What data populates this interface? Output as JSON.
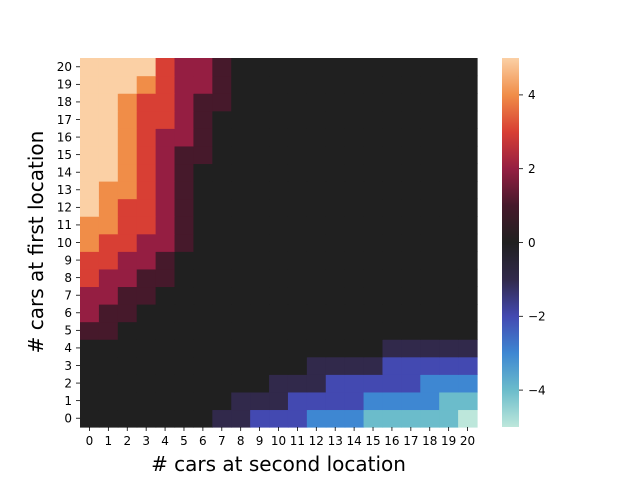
{
  "chart_data": {
    "type": "heatmap",
    "title": "",
    "xlabel": "# cars at second location",
    "ylabel": "# cars at first location",
    "x_categories": [
      "0",
      "1",
      "2",
      "3",
      "4",
      "5",
      "6",
      "7",
      "8",
      "9",
      "10",
      "11",
      "12",
      "13",
      "14",
      "15",
      "16",
      "17",
      "18",
      "19",
      "20"
    ],
    "y_categories": [
      "0",
      "1",
      "2",
      "3",
      "4",
      "5",
      "6",
      "7",
      "8",
      "9",
      "10",
      "11",
      "12",
      "13",
      "14",
      "15",
      "16",
      "17",
      "18",
      "19",
      "20"
    ],
    "y_order": "bottom-to-top",
    "value_range": [
      -5,
      5
    ],
    "colormap": "icefire",
    "colormap_stops": [
      "#bde7db",
      "#6bbccb",
      "#3e87d2",
      "#4349b1",
      "#31294b",
      "#202020",
      "#46192b",
      "#951e42",
      "#d83f34",
      "#f08d48",
      "#fbd0a5"
    ],
    "colorbar": {
      "ticks": [
        4,
        2,
        0,
        -2,
        -4
      ],
      "tick_labels": [
        "4",
        "2",
        "0",
        "−2",
        "−4"
      ],
      "position": "right"
    },
    "grid": false,
    "rows": [
      [
        0,
        0,
        0,
        0,
        0,
        0,
        0,
        -1,
        -1,
        -2,
        -2,
        -2,
        -3,
        -3,
        -3,
        -4,
        -4,
        -4,
        -4,
        -4,
        -5
      ],
      [
        0,
        0,
        0,
        0,
        0,
        0,
        0,
        0,
        -1,
        -1,
        -1,
        -2,
        -2,
        -2,
        -2,
        -3,
        -3,
        -3,
        -3,
        -4,
        -4
      ],
      [
        0,
        0,
        0,
        0,
        0,
        0,
        0,
        0,
        0,
        0,
        -1,
        -1,
        -1,
        -2,
        -2,
        -2,
        -2,
        -2,
        -3,
        -3,
        -3
      ],
      [
        0,
        0,
        0,
        0,
        0,
        0,
        0,
        0,
        0,
        0,
        0,
        0,
        -1,
        -1,
        -1,
        -1,
        -2,
        -2,
        -2,
        -2,
        -2
      ],
      [
        0,
        0,
        0,
        0,
        0,
        0,
        0,
        0,
        0,
        0,
        0,
        0,
        0,
        0,
        0,
        0,
        -1,
        -1,
        -1,
        -1,
        -1
      ],
      [
        1,
        1,
        0,
        0,
        0,
        0,
        0,
        0,
        0,
        0,
        0,
        0,
        0,
        0,
        0,
        0,
        0,
        0,
        0,
        0,
        0
      ],
      [
        2,
        1,
        1,
        0,
        0,
        0,
        0,
        0,
        0,
        0,
        0,
        0,
        0,
        0,
        0,
        0,
        0,
        0,
        0,
        0,
        0
      ],
      [
        2,
        2,
        1,
        1,
        0,
        0,
        0,
        0,
        0,
        0,
        0,
        0,
        0,
        0,
        0,
        0,
        0,
        0,
        0,
        0,
        0
      ],
      [
        3,
        2,
        2,
        1,
        1,
        0,
        0,
        0,
        0,
        0,
        0,
        0,
        0,
        0,
        0,
        0,
        0,
        0,
        0,
        0,
        0
      ],
      [
        3,
        3,
        2,
        2,
        1,
        0,
        0,
        0,
        0,
        0,
        0,
        0,
        0,
        0,
        0,
        0,
        0,
        0,
        0,
        0,
        0
      ],
      [
        4,
        3,
        3,
        2,
        2,
        1,
        0,
        0,
        0,
        0,
        0,
        0,
        0,
        0,
        0,
        0,
        0,
        0,
        0,
        0,
        0
      ],
      [
        4,
        4,
        3,
        3,
        2,
        1,
        0,
        0,
        0,
        0,
        0,
        0,
        0,
        0,
        0,
        0,
        0,
        0,
        0,
        0,
        0
      ],
      [
        5,
        4,
        3,
        3,
        2,
        1,
        0,
        0,
        0,
        0,
        0,
        0,
        0,
        0,
        0,
        0,
        0,
        0,
        0,
        0,
        0
      ],
      [
        5,
        4,
        4,
        3,
        2,
        1,
        0,
        0,
        0,
        0,
        0,
        0,
        0,
        0,
        0,
        0,
        0,
        0,
        0,
        0,
        0
      ],
      [
        5,
        5,
        4,
        3,
        2,
        1,
        0,
        0,
        0,
        0,
        0,
        0,
        0,
        0,
        0,
        0,
        0,
        0,
        0,
        0,
        0
      ],
      [
        5,
        5,
        4,
        3,
        2,
        1,
        1,
        0,
        0,
        0,
        0,
        0,
        0,
        0,
        0,
        0,
        0,
        0,
        0,
        0,
        0
      ],
      [
        5,
        5,
        4,
        3,
        2,
        2,
        1,
        0,
        0,
        0,
        0,
        0,
        0,
        0,
        0,
        0,
        0,
        0,
        0,
        0,
        0
      ],
      [
        5,
        5,
        4,
        3,
        3,
        2,
        1,
        0,
        0,
        0,
        0,
        0,
        0,
        0,
        0,
        0,
        0,
        0,
        0,
        0,
        0
      ],
      [
        5,
        5,
        4,
        3,
        3,
        2,
        1,
        1,
        0,
        0,
        0,
        0,
        0,
        0,
        0,
        0,
        0,
        0,
        0,
        0,
        0
      ],
      [
        5,
        5,
        5,
        4,
        3,
        2,
        2,
        1,
        0,
        0,
        0,
        0,
        0,
        0,
        0,
        0,
        0,
        0,
        0,
        0,
        0
      ],
      [
        5,
        5,
        5,
        5,
        3,
        2,
        2,
        1,
        0,
        0,
        0,
        0,
        0,
        0,
        0,
        0,
        0,
        0,
        0,
        0,
        0
      ]
    ]
  }
}
